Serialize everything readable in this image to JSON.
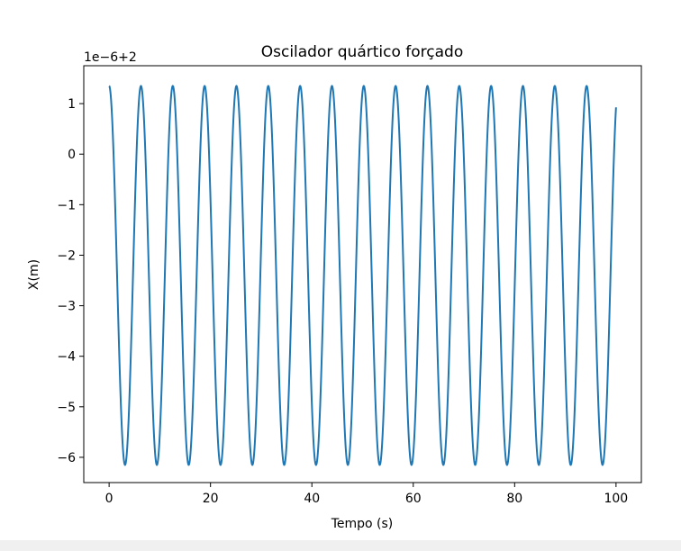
{
  "chart_data": {
    "type": "line",
    "title": "Oscilador quártico forçado",
    "xlabel": "Tempo (s)",
    "ylabel": "X(m)",
    "offset_text": "1e−6+2",
    "xlim": [
      -5,
      105
    ],
    "ylim": [
      -6.5,
      1.75
    ],
    "x_ticks": [
      0,
      20,
      40,
      60,
      80,
      100
    ],
    "x_tick_labels": [
      "0",
      "20",
      "40",
      "60",
      "80",
      "100"
    ],
    "y_ticks": [
      1,
      0,
      -1,
      -2,
      -3,
      -4,
      -5,
      -6
    ],
    "y_tick_labels": [
      "1",
      "0",
      "−1",
      "−2",
      "−3",
      "−4",
      "−5",
      "−6"
    ],
    "grid": false,
    "series": [
      {
        "color": "#1f77b4",
        "x_start": 0,
        "x_end": 100,
        "y_max": 1.35,
        "y_min": -6.15,
        "period": 6.28,
        "starts_at": "max",
        "y_end": 0.85
      }
    ]
  },
  "colors": {
    "line": "#1f77b4",
    "axes": "#000000",
    "background": "#ffffff"
  }
}
